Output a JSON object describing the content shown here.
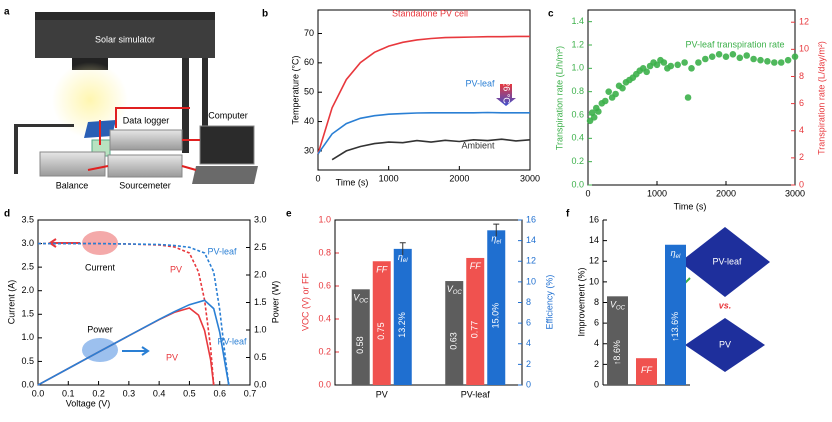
{
  "panel_labels": [
    "a",
    "b",
    "c",
    "d",
    "e",
    "f"
  ],
  "schematic": {
    "labels": [
      "Solar simulator",
      "Data logger",
      "Computer",
      "Balance",
      "Sourcemeter"
    ]
  },
  "chart_data": [
    {
      "type": "line",
      "xlabel": "Time (s)",
      "ylabel": "Temperature (°C)",
      "x": [
        0,
        200,
        400,
        600,
        800,
        1000,
        1200,
        1400,
        1600,
        1800,
        2000,
        2200,
        2400,
        2600,
        2800,
        3000
      ],
      "xlim": [
        0,
        3000
      ],
      "xticks": [
        0,
        1000,
        2000,
        3000
      ],
      "ylim": [
        23.5,
        78
      ],
      "yticks": [
        30,
        40,
        50,
        60,
        70
      ],
      "series": [
        {
          "name": "Standalone PV cell",
          "color": "#e8383d",
          "values": [
            29,
            44.7,
            54.3,
            60.1,
            63.6,
            65.7,
            67.0,
            67.8,
            68.3,
            68.6,
            68.7,
            68.8,
            68.9,
            68.9,
            69,
            69
          ]
        },
        {
          "name": "PV-leaf",
          "color": "#2a7fd4",
          "values": [
            29,
            35.8,
            39.3,
            41.1,
            42.0,
            42.5,
            42.7,
            42.9,
            43,
            43,
            43,
            43,
            43.1,
            43,
            43,
            43
          ]
        },
        {
          "name": "Ambient",
          "color": "#333333",
          "values": [
            null,
            27,
            30,
            31.5,
            32.5,
            33,
            32.8,
            33.5,
            33,
            33.6,
            33.2,
            33.8,
            33.5,
            34,
            33.4,
            33.8
          ]
        }
      ],
      "annotation": "-26 °C"
    },
    {
      "type": "scatter",
      "xlabel": "Time (s)",
      "ylabel": "Transpiration rate (L/h/m²)",
      "y2label": "Transpiration rate (L/day/m²)",
      "ycolor": "#3cb04a",
      "y2color": "#e8383d",
      "xlim": [
        0,
        3000
      ],
      "xticks": [
        0,
        1000,
        2000,
        3000
      ],
      "ylim": [
        0,
        1.5
      ],
      "yticks": [
        {
          "value": 0,
          "label": "0.0"
        },
        0.2,
        0.4,
        0.6,
        0.8,
        {
          "value": 1,
          "label": "1.0"
        },
        1.2,
        1.4
      ],
      "y2lim": [
        0,
        12.9
      ],
      "y2ticks": [
        0,
        2,
        4,
        6,
        8,
        10,
        12
      ],
      "x": [
        30,
        60,
        90,
        120,
        150,
        200,
        250,
        300,
        350,
        400,
        450,
        500,
        550,
        600,
        650,
        700,
        750,
        800,
        850,
        900,
        950,
        1000,
        1050,
        1100,
        1150,
        1200,
        1300,
        1400,
        1450,
        1500,
        1600,
        1700,
        1800,
        1900,
        2000,
        2100,
        2200,
        2300,
        2400,
        2500,
        2600,
        2700,
        2800,
        2900,
        3000
      ],
      "series": [
        {
          "name": "PV-leaf transpiration rate",
          "color": "#3cb04a",
          "values": [
            0.55,
            0.62,
            0.58,
            0.66,
            0.63,
            0.7,
            0.72,
            0.8,
            0.75,
            0.78,
            0.85,
            0.83,
            0.88,
            0.9,
            0.92,
            0.95,
            0.98,
            1.0,
            0.97,
            1.02,
            1.05,
            1.03,
            1.07,
            1.05,
            1.0,
            1.02,
            1.03,
            1.05,
            0.75,
            1.0,
            1.05,
            1.08,
            1.1,
            1.12,
            1.1,
            1.12,
            1.09,
            1.11,
            1.08,
            1.07,
            1.06,
            1.05,
            1.05,
            1.07,
            1.1
          ]
        }
      ]
    },
    {
      "type": "line",
      "xlabel": "Voltage (V)",
      "ylabel": "Current (A)",
      "y2label": "Power (W)",
      "xlim": [
        0,
        0.7
      ],
      "xticks": [
        {
          "value": 0,
          "label": "0.0"
        },
        0.1,
        0.2,
        0.3,
        0.4,
        0.5,
        0.6,
        0.7
      ],
      "ylim": [
        0,
        3.5
      ],
      "yticks": [
        {
          "value": 0,
          "label": "0.0"
        },
        0.5,
        {
          "value": 1,
          "label": "1.0"
        },
        1.5,
        {
          "value": 2,
          "label": "2.0"
        },
        2.5,
        {
          "value": 3,
          "label": "3.0"
        },
        3.5
      ],
      "y2lim": [
        0,
        3
      ],
      "y2ticks": [
        {
          "value": 0,
          "label": "0.0"
        },
        0.5,
        {
          "value": 1,
          "label": "1.0"
        },
        1.5,
        {
          "value": 2,
          "label": "2.0"
        },
        2.5,
        {
          "value": 3,
          "label": "3.0"
        }
      ],
      "groups": [
        "Current",
        "Power"
      ],
      "series": [
        {
          "name": "PV",
          "color": "#e8383d",
          "dashed": true,
          "x": [
            0,
            0.1,
            0.2,
            0.3,
            0.4,
            0.45,
            0.5,
            0.53,
            0.55,
            0.57,
            0.58
          ],
          "values": [
            3.0,
            3.0,
            3.0,
            2.99,
            2.97,
            2.93,
            2.8,
            2.4,
            1.8,
            0.8,
            0
          ]
        },
        {
          "name": "PV-leaf",
          "color": "#2a7fd4",
          "dashed": true,
          "x": [
            0,
            0.1,
            0.2,
            0.3,
            0.4,
            0.45,
            0.5,
            0.55,
            0.58,
            0.6,
            0.62,
            0.63
          ],
          "values": [
            3.0,
            3.0,
            3.0,
            2.99,
            2.98,
            2.96,
            2.92,
            2.8,
            2.4,
            1.6,
            0.5,
            0
          ]
        },
        {
          "name": "PV",
          "color": "#e8383d",
          "axis": "y2",
          "x": [
            0,
            0.1,
            0.2,
            0.3,
            0.4,
            0.45,
            0.5,
            0.53,
            0.55,
            0.57,
            0.58
          ],
          "values": [
            0,
            0.3,
            0.6,
            0.897,
            1.188,
            1.32,
            1.4,
            1.27,
            0.99,
            0.46,
            0
          ]
        },
        {
          "name": "PV-leaf",
          "color": "#2a7fd4",
          "axis": "y2",
          "x": [
            0,
            0.1,
            0.2,
            0.3,
            0.4,
            0.45,
            0.5,
            0.55,
            0.58,
            0.6,
            0.62,
            0.63
          ],
          "values": [
            0,
            0.3,
            0.6,
            0.897,
            1.192,
            1.332,
            1.46,
            1.54,
            1.39,
            0.96,
            0.31,
            0
          ]
        }
      ]
    },
    {
      "type": "bar",
      "ylabel": "VOC (V) or FF",
      "y2label": "Efficiency (%)",
      "ycolor": "#e8383d",
      "y2color": "#1f6fd0",
      "categories": [
        "PV",
        "PV-leaf"
      ],
      "ylim": [
        0,
        1
      ],
      "yticks": [
        {
          "value": 0,
          "label": "0.0"
        },
        0.2,
        0.4,
        0.6,
        0.8,
        {
          "value": 1,
          "label": "1.0"
        }
      ],
      "y2lim": [
        0,
        16
      ],
      "y2ticks": [
        0,
        2,
        4,
        6,
        8,
        10,
        12,
        14,
        16
      ],
      "series": [
        {
          "name": "V",
          "sub": "OC",
          "color": "#5d5d5d",
          "values": [
            0.58,
            0.63
          ],
          "value_labels": [
            "0.58",
            "0.63"
          ]
        },
        {
          "name": "FF",
          "color": "#f0524f",
          "values": [
            0.75,
            0.77
          ],
          "value_labels": [
            "0.75",
            "0.77"
          ]
        },
        {
          "name": "η",
          "sub": "el",
          "color": "#1f6fd0",
          "axis": "y2",
          "values": [
            13.2,
            15.0
          ],
          "errors": [
            0.6,
            0.6
          ],
          "value_labels": [
            "13.2%",
            "15.0%"
          ]
        }
      ]
    },
    {
      "type": "bar",
      "ylabel": "Improvement (%)",
      "categories": [
        "V",
        "FF",
        "η"
      ],
      "category_subs": [
        "OC",
        null,
        "el"
      ],
      "colors": [
        "#5d5d5d",
        "#f0524f",
        "#1f6fd0"
      ],
      "values": [
        8.6,
        2.6,
        13.6
      ],
      "value_labels": [
        "↑8.6%",
        null,
        "↑13.6%"
      ],
      "ylim": [
        0,
        16
      ],
      "yticks": [
        0,
        2,
        4,
        6,
        8,
        10,
        12,
        14,
        16
      ],
      "annotations": [
        "PV-leaf",
        "vs.",
        "PV"
      ]
    }
  ]
}
